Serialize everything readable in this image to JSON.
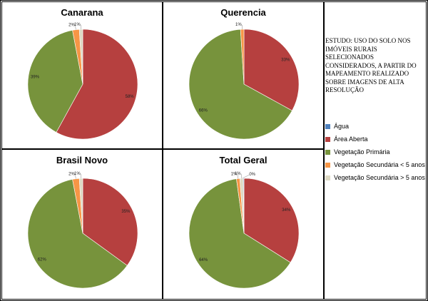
{
  "legend": {
    "items": [
      {
        "label": "Água",
        "color": "#4f81bd"
      },
      {
        "label": "Área Aberta",
        "color": "#b6403f"
      },
      {
        "label": "Vegetação Primária",
        "color": "#77933c"
      },
      {
        "label": "Vegetação Secundária < 5 anos",
        "color": "#f79646"
      },
      {
        "label": "Vegetação Secundária > 5 anos",
        "color": "#ddd9c3"
      }
    ]
  },
  "study_note": "ESTUDO: USO DO SOLO NOS IMÓVEIS RURAIS SELECIONADOS CONSIDERADOS, A PARTIR DO MAPEAMENTO REALIZADO SOBRE IMAGENS DE ALTA RESOLUÇÃO",
  "chart_data": [
    {
      "type": "pie",
      "title": "Canarana",
      "categories": [
        "Água",
        "Área Aberta",
        "Vegetação Primária",
        "Vegetação Secundária < 5 anos",
        "Vegetação Secundária > 5 anos"
      ],
      "values": [
        0,
        58,
        39,
        2,
        1
      ],
      "labels": [
        "",
        "58%",
        "39%",
        "2%",
        "1%"
      ]
    },
    {
      "type": "pie",
      "title": "Querencia",
      "categories": [
        "Água",
        "Área Aberta",
        "Vegetação Primária",
        "Vegetação Secundária < 5 anos",
        "Vegetação Secundária > 5 anos"
      ],
      "values": [
        0,
        33,
        66,
        1,
        0
      ],
      "labels": [
        "",
        "33%",
        "66%",
        "1%",
        "0%"
      ]
    },
    {
      "type": "pie",
      "title": "Brasil Novo",
      "categories": [
        "Água",
        "Área Aberta",
        "Vegetação Primária",
        "Vegetação Secundária < 5 anos",
        "Vegetação Secundária > 5 anos"
      ],
      "values": [
        0,
        35,
        62,
        2,
        1
      ],
      "labels": [
        "",
        "35%",
        "62%",
        "2%",
        "1%"
      ]
    },
    {
      "type": "pie",
      "title": "Total Geral",
      "categories": [
        "Água",
        "Área Aberta",
        "Vegetação Primária",
        "Vegetação Secundária < 5 anos",
        "Vegetação Secundária > 5 anos"
      ],
      "values": [
        0.2,
        34,
        64,
        1,
        1
      ],
      "labels": [
        "",
        "34%",
        "64%",
        "1%",
        "1%"
      ],
      "extra_label": "0%"
    }
  ]
}
